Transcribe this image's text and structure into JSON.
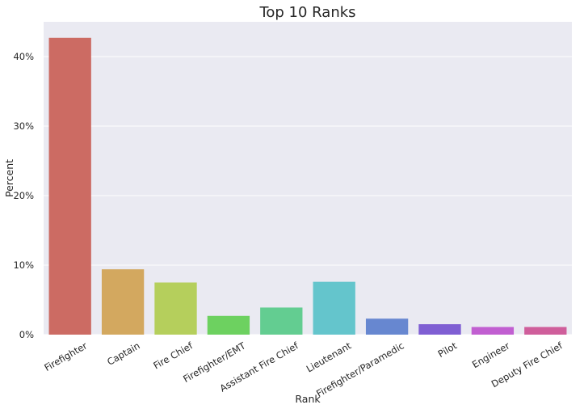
{
  "chart_data": {
    "type": "bar",
    "title": "Top 10 Ranks",
    "xlabel": "Rank",
    "ylabel": "Percent",
    "categories": [
      "Firefighter",
      "Captain",
      "Fire Chief",
      "Firefighter/EMT",
      "Assistant Fire Chief",
      "Lieutenant",
      "Firefighter/Paramedic",
      "Pilot",
      "Engineer",
      "Deputy Fire Chief"
    ],
    "values": [
      42.7,
      9.4,
      7.5,
      2.7,
      3.9,
      7.6,
      2.3,
      1.5,
      1.1,
      1.1
    ],
    "colors": [
      "#cc6b63",
      "#d3a85f",
      "#b5cf5c",
      "#6dd160",
      "#63cd91",
      "#64c5cc",
      "#6787d0",
      "#7f5fd3",
      "#c15fd1",
      "#cf5e9b"
    ],
    "ylim": [
      0,
      45
    ],
    "yticks": [
      0,
      10,
      20,
      30,
      40
    ],
    "ytick_labels": [
      "0%",
      "10%",
      "20%",
      "30%",
      "40%"
    ],
    "grid": true,
    "background": "#eaeaf2"
  }
}
